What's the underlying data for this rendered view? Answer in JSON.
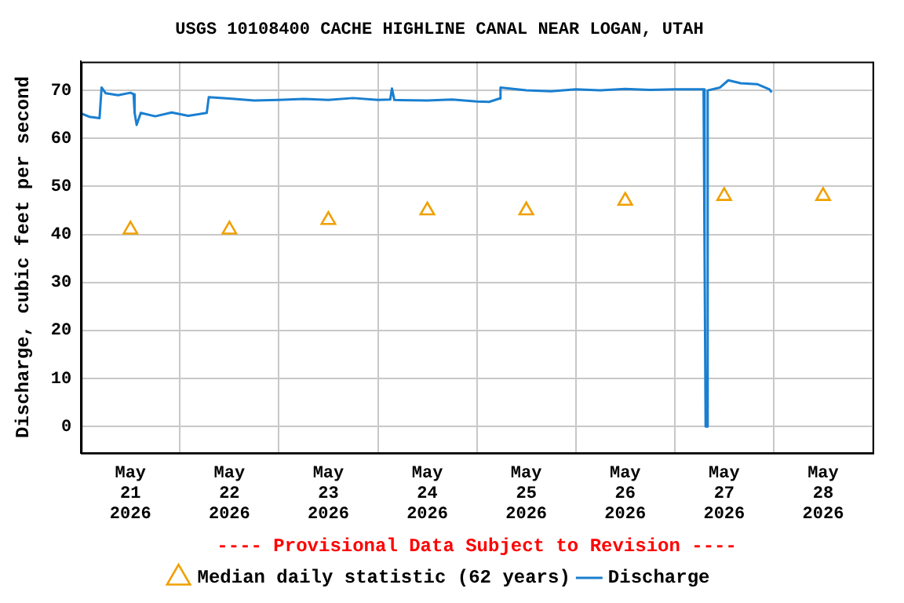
{
  "chart_data": {
    "type": "line",
    "title": "USGS 10108400 CACHE HIGHLINE CANAL NEAR LOGAN, UTAH",
    "ylabel": "Discharge, cubic feet per second",
    "annotations": [
      "---- Provisional Data Subject to Revision ----"
    ],
    "xlim": [
      "2026-05-21T00:00",
      "2026-05-29T00:00"
    ],
    "xticks": [
      {
        "value": "2026-05-21T00:00",
        "label": null
      },
      {
        "value": "2026-05-21T12:00",
        "label": "May\n21\n2026"
      },
      {
        "value": "2026-05-22T00:00",
        "label": null
      },
      {
        "value": "2026-05-22T12:00",
        "label": "May\n22\n2026"
      },
      {
        "value": "2026-05-23T00:00",
        "label": null
      },
      {
        "value": "2026-05-23T12:00",
        "label": "May\n23\n2026"
      },
      {
        "value": "2026-05-24T00:00",
        "label": null
      },
      {
        "value": "2026-05-24T12:00",
        "label": "May\n24\n2026"
      },
      {
        "value": "2026-05-25T00:00",
        "label": null
      },
      {
        "value": "2026-05-25T12:00",
        "label": "May\n25\n2026"
      },
      {
        "value": "2026-05-26T00:00",
        "label": null
      },
      {
        "value": "2026-05-26T12:00",
        "label": "May\n26\n2026"
      },
      {
        "value": "2026-05-27T00:00",
        "label": null
      },
      {
        "value": "2026-05-27T12:00",
        "label": "May\n27\n2026"
      },
      {
        "value": "2026-05-28T00:00",
        "label": null
      },
      {
        "value": "2026-05-28T12:00",
        "label": "May\n28\n2026"
      },
      {
        "value": "2026-05-29T00:00",
        "label": null
      }
    ],
    "ylim": [
      -5.5,
      76
    ],
    "yticks": [
      0,
      10,
      20,
      30,
      40,
      50,
      60,
      70
    ],
    "grid": true,
    "legend": "bottom",
    "series": [
      {
        "name": "Median daily statistic (62 years)",
        "type": "scatter",
        "marker": "triangle",
        "color": "#f0a000",
        "x": [
          "2026-05-21T12:00",
          "2026-05-22T12:00",
          "2026-05-23T12:00",
          "2026-05-24T12:00",
          "2026-05-25T12:00",
          "2026-05-26T12:00",
          "2026-05-27T12:00",
          "2026-05-28T12:00"
        ],
        "values": [
          41,
          41,
          43,
          45,
          45,
          47,
          48,
          48
        ]
      },
      {
        "name": "Discharge",
        "marker": "none",
        "color": "#1a7fd0",
        "x": [
          "2026-05-21T00:00",
          "2026-05-21T02:00",
          "2026-05-21T04:30",
          "2026-05-21T05:00",
          "2026-05-21T06:00",
          "2026-05-21T09:00",
          "2026-05-21T12:00",
          "2026-05-21T12:45",
          "2026-05-21T13:00",
          "2026-05-21T13:30",
          "2026-05-21T14:30",
          "2026-05-21T18:00",
          "2026-05-21T22:00",
          "2026-05-22T02:00",
          "2026-05-22T06:30",
          "2026-05-22T07:00",
          "2026-05-22T12:00",
          "2026-05-22T18:00",
          "2026-05-23T00:00",
          "2026-05-23T06:00",
          "2026-05-23T12:00",
          "2026-05-23T18:00",
          "2026-05-24T00:00",
          "2026-05-24T03:00",
          "2026-05-24T03:25",
          "2026-05-24T04:00",
          "2026-05-24T12:00",
          "2026-05-24T18:00",
          "2026-05-25T00:00",
          "2026-05-25T03:00",
          "2026-05-25T05:30",
          "2026-05-25T05:45",
          "2026-05-25T12:00",
          "2026-05-25T18:00",
          "2026-05-26T00:00",
          "2026-05-26T06:00",
          "2026-05-26T12:00",
          "2026-05-26T18:00",
          "2026-05-27T00:00",
          "2026-05-27T07:00",
          "2026-05-27T07:15",
          "2026-05-27T07:30",
          "2026-05-27T07:45",
          "2026-05-27T08:00",
          "2026-05-27T11:00",
          "2026-05-27T13:00",
          "2026-05-27T16:00",
          "2026-05-27T20:00",
          "2026-05-27T23:00",
          "2026-05-27T23:30"
        ],
        "values": [
          65.2,
          64.5,
          64.2,
          70.6,
          69.4,
          69.0,
          69.5,
          69.2,
          65.4,
          62.8,
          65.3,
          64.6,
          65.4,
          64.7,
          65.3,
          68.6,
          68.3,
          67.9,
          68.0,
          68.2,
          68.0,
          68.4,
          68.0,
          68.1,
          70.4,
          68.0,
          67.9,
          68.1,
          67.7,
          67.6,
          68.3,
          70.6,
          70.0,
          69.8,
          70.2,
          70.0,
          70.3,
          70.1,
          70.2,
          70.2,
          35.4,
          0,
          0,
          70.0,
          70.6,
          72.1,
          71.5,
          71.3,
          70.2,
          69.6
        ]
      }
    ]
  }
}
